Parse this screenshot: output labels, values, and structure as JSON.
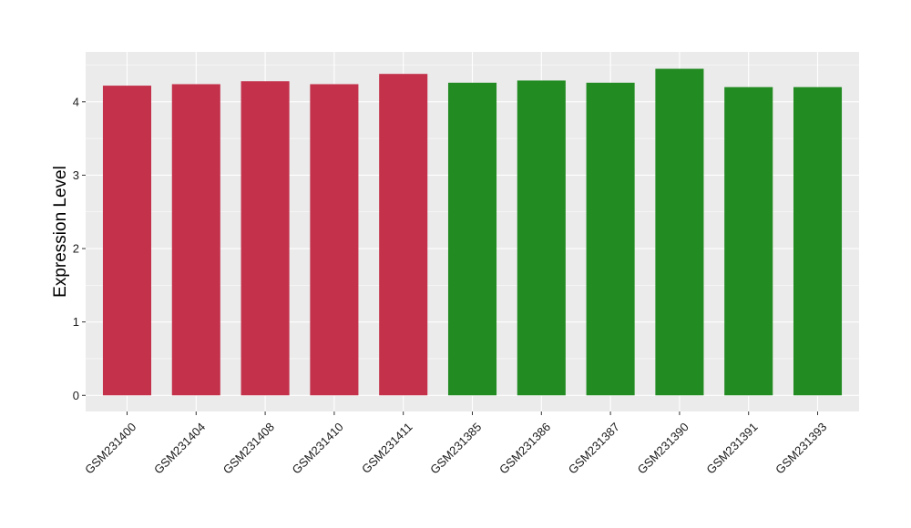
{
  "chart_data": {
    "type": "bar",
    "ylabel": "Expression Level",
    "xlabel": "",
    "categories": [
      "GSM231400",
      "GSM231404",
      "GSM231408",
      "GSM231410",
      "GSM231411",
      "GSM231385",
      "GSM231386",
      "GSM231387",
      "GSM231390",
      "GSM231391",
      "GSM231393"
    ],
    "values": [
      4.22,
      4.24,
      4.28,
      4.24,
      4.38,
      4.26,
      4.29,
      4.26,
      4.45,
      4.2,
      4.2
    ],
    "bar_colors": [
      "#C3314A",
      "#C3314A",
      "#C3314A",
      "#C3314A",
      "#C3314A",
      "#228B22",
      "#228B22",
      "#228B22",
      "#228B22",
      "#228B22",
      "#228B22"
    ],
    "ylim": [
      -0.22,
      4.68
    ],
    "yticks": [
      0,
      1,
      2,
      3,
      4
    ],
    "ytick_labels": [
      "0",
      "1",
      "2",
      "3",
      "4"
    ],
    "grid": true,
    "panel_background": "#EBEBEB",
    "grid_color": "#FFFFFF"
  }
}
